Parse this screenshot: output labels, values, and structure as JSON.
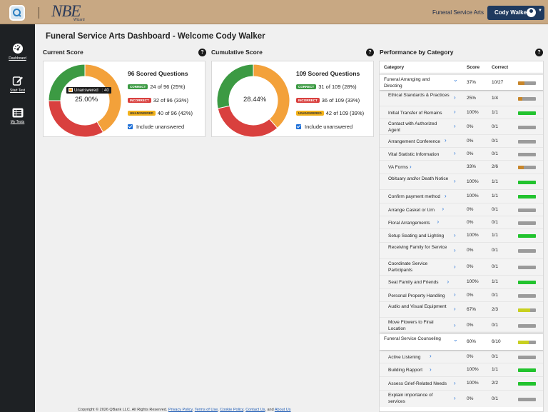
{
  "header": {
    "product": "Funeral Service Arts",
    "user_name": "Cody Walker",
    "logo_text": "NBE",
    "logo_sub": "Wizard"
  },
  "sidebar": {
    "items": [
      {
        "label": "Dashboard",
        "icon": "gauge-icon"
      },
      {
        "label": "Start Test",
        "icon": "edit-icon"
      },
      {
        "label": "My Tests",
        "icon": "list-icon"
      }
    ]
  },
  "page": {
    "title": "Funeral Service Arts Dashboard - Welcome Cody Walker"
  },
  "current_score": {
    "title": "Current Score",
    "scored": "96 Scored Questions",
    "percent": "25.00%",
    "correct_label": "CORRECT",
    "correct_text": "24 of 96 (25%)",
    "incorrect_label": "INCORRECT",
    "incorrect_text": "32 of 96 (33%)",
    "unanswered_label": "UNANSWERED",
    "unanswered_text": "40 of 96 (42%)",
    "include_label": "Include unanswered",
    "tooltip_label": "Unanswered",
    "tooltip_value": ": 40",
    "segments": {
      "correct": 24,
      "incorrect": 32,
      "unanswered": 40
    }
  },
  "cumulative_score": {
    "title": "Cumulative Score",
    "scored": "109 Scored Questions",
    "percent": "28.44%",
    "correct_label": "CORRECT",
    "correct_text": "31 of 109 (28%)",
    "incorrect_label": "INCORRECT",
    "incorrect_text": "36 of 109 (33%)",
    "unanswered_label": "UNANSWERED",
    "unanswered_text": "42 of 109 (39%)",
    "include_label": "Include unanswered",
    "segments": {
      "correct": 31,
      "incorrect": 36,
      "unanswered": 42
    }
  },
  "performance": {
    "title": "Performance by Category",
    "headers": {
      "category": "Category",
      "score": "Score",
      "correct": "Correct"
    },
    "rows": [
      {
        "category": "Funeral Arranging and Directing",
        "score": "37%",
        "correct": "10/27",
        "group": true,
        "fill": 0.37
      },
      {
        "category": "Ethical Standards & Practices",
        "score": "25%",
        "correct": "1/4",
        "fill": 0.25
      },
      {
        "category": "Initial Transfer of Remains",
        "score": "100%",
        "correct": "1/1",
        "fill": 1.0
      },
      {
        "category": "Contact with Authorized Agent",
        "score": "0%",
        "correct": "0/1",
        "fill": 0
      },
      {
        "category": "Arrangement Conference",
        "score": "0%",
        "correct": "0/1",
        "fill": 0
      },
      {
        "category": "Vital Statistic Information",
        "score": "0%",
        "correct": "0/1",
        "fill": 0
      },
      {
        "category": "VA Forms",
        "score": "33%",
        "correct": "2/6",
        "fill": 0.33
      },
      {
        "category": "Obituary and/or Death Notice",
        "score": "100%",
        "correct": "1/1",
        "fill": 1.0
      },
      {
        "category": "Confirm payment method",
        "score": "100%",
        "correct": "1/1",
        "fill": 1.0
      },
      {
        "category": "Arrange Casket or Urn",
        "score": "0%",
        "correct": "0/1",
        "fill": 0
      },
      {
        "category": "Floral Arrangements",
        "score": "0%",
        "correct": "0/1",
        "fill": 0
      },
      {
        "category": "Setup Seating and Lighting",
        "score": "100%",
        "correct": "1/1",
        "fill": 1.0
      },
      {
        "category": "Receiving Family for Service",
        "score": "0%",
        "correct": "0/1",
        "fill": 0
      },
      {
        "category": "Coordinate Service Participants",
        "score": "0%",
        "correct": "0/1",
        "fill": 0
      },
      {
        "category": "Seat Family and Friends",
        "score": "100%",
        "correct": "1/1",
        "fill": 1.0
      },
      {
        "category": "Personal Property Handling",
        "score": "0%",
        "correct": "0/1",
        "fill": 0
      },
      {
        "category": "Audio and Visual Equipment",
        "score": "67%",
        "correct": "2/3",
        "fill": 0.67
      },
      {
        "category": "Move Flowers to Final Location",
        "score": "0%",
        "correct": "0/1",
        "fill": 0
      },
      {
        "category": "Funeral Service Counseling",
        "score": "60%",
        "correct": "6/10",
        "group": true,
        "fill": 0.6
      },
      {
        "category": "Active Listening",
        "score": "0%",
        "correct": "0/1",
        "fill": 0
      },
      {
        "category": "Building Rapport",
        "score": "100%",
        "correct": "1/1",
        "fill": 1.0
      },
      {
        "category": "Assess Grief-Related Needs",
        "score": "100%",
        "correct": "2/2",
        "fill": 1.0
      },
      {
        "category": "Explain importance of services",
        "score": "0%",
        "correct": "0/1",
        "fill": 0
      }
    ]
  },
  "footer": {
    "copyright": "Copyright © 2026 QBank LLC. All Rights Reserved.",
    "privacy": "Privacy Policy",
    "terms": "Terms of Use",
    "cookie": "Cookie Policy",
    "contact": "Contact Us",
    "and": ", and",
    "about": "About Us"
  },
  "colors": {
    "correct": "#3c9a43",
    "incorrect": "#d9403e",
    "unanswered": "#f3a13a",
    "bar_full": "#22c32e",
    "bar_mid": "#c8d020",
    "bar_low": "#c8862a",
    "bar_empty": "#9b9b9b"
  }
}
